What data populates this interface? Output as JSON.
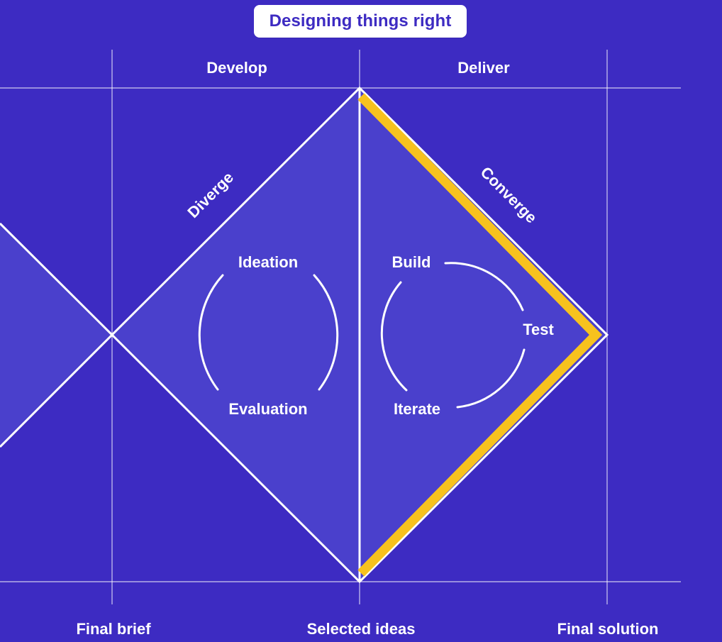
{
  "title": "Designing things right",
  "phases": {
    "develop": "Develop",
    "deliver": "Deliver"
  },
  "diagonals": {
    "diverge": "Diverge",
    "converge": "Converge"
  },
  "develop_cycle": {
    "top": "Ideation",
    "bottom": "Evaluation"
  },
  "deliver_cycle": {
    "build": "Build",
    "test": "Test",
    "iterate": "Iterate"
  },
  "milestones": {
    "final_brief": "Final brief",
    "selected_ideas": "Selected ideas",
    "final_solution": "Final solution"
  },
  "colors": {
    "background": "#3d2bc2",
    "diamond_fill": "#4a40cc",
    "line": "#ffffff",
    "highlight": "#f7c21e"
  }
}
